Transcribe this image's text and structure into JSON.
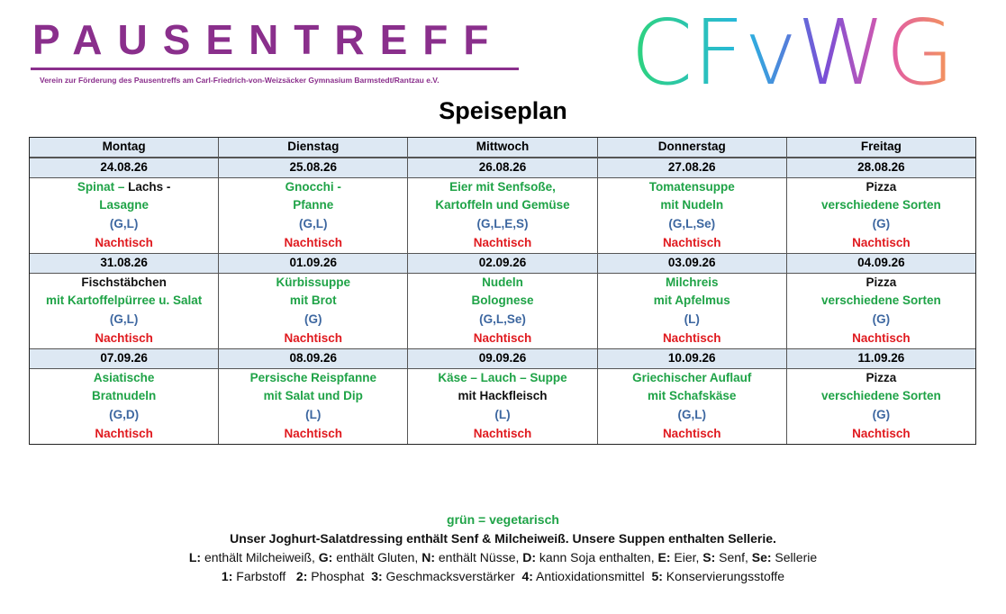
{
  "header": {
    "brand": "PAUSENTREFF",
    "subtitle": "Verein zur Förderung des Pausentreffs am Carl-Friedrich-von-Weizsäcker Gymnasium Barmstedt/Rantzau e.V.",
    "logo": "CFvWG"
  },
  "title": "Speiseplan",
  "table": {
    "days": [
      "Montag",
      "Dienstag",
      "Mittwoch",
      "Donnerstag",
      "Freitag"
    ],
    "weeks": [
      {
        "dates": [
          "24.08.26",
          "25.08.26",
          "26.08.26",
          "27.08.26",
          "28.08.26"
        ],
        "menus": [
          [
            [
              [
                "Spinat – ",
                "green"
              ],
              [
                "Lachs -",
                "black"
              ]
            ],
            [
              [
                "Lasagne",
                "green"
              ]
            ],
            [
              [
                "(G,L)",
                "blue"
              ]
            ],
            [
              [
                "Nachtisch",
                "red"
              ]
            ]
          ],
          [
            [
              [
                "Gnocchi -",
                "green"
              ]
            ],
            [
              [
                "Pfanne",
                "green"
              ]
            ],
            [
              [
                "(G,L)",
                "blue"
              ]
            ],
            [
              [
                "Nachtisch",
                "red"
              ]
            ]
          ],
          [
            [
              [
                "Eier mit Senfsoße,",
                "green"
              ]
            ],
            [
              [
                "Kartoffeln und Gemüse",
                "green"
              ]
            ],
            [
              [
                "(G,L,E,S)",
                "blue"
              ]
            ],
            [
              [
                "Nachtisch",
                "red"
              ]
            ]
          ],
          [
            [
              [
                "Tomatensuppe",
                "green"
              ]
            ],
            [
              [
                "mit Nudeln",
                "green"
              ]
            ],
            [
              [
                "(G,L,Se)",
                "blue"
              ]
            ],
            [
              [
                "Nachtisch",
                "red"
              ]
            ]
          ],
          [
            [
              [
                "Pizza",
                "black"
              ]
            ],
            [
              [
                "verschiedene Sorten",
                "green"
              ]
            ],
            [
              [
                "(G)",
                "blue"
              ]
            ],
            [
              [
                "Nachtisch",
                "red"
              ]
            ]
          ]
        ]
      },
      {
        "dates": [
          "31.08.26",
          "01.09.26",
          "02.09.26",
          "03.09.26",
          "04.09.26"
        ],
        "menus": [
          [
            [
              [
                "Fischstäbchen",
                "black"
              ]
            ],
            [
              [
                "mit Kartoffelpürree u. Salat",
                "green"
              ]
            ],
            [
              [
                "(G,L)",
                "blue"
              ]
            ],
            [
              [
                "Nachtisch",
                "red"
              ]
            ]
          ],
          [
            [
              [
                "Kürbissuppe",
                "green"
              ]
            ],
            [
              [
                "mit Brot",
                "green"
              ]
            ],
            [
              [
                "(G)",
                "blue"
              ]
            ],
            [
              [
                "Nachtisch",
                "red"
              ]
            ]
          ],
          [
            [
              [
                "Nudeln",
                "green"
              ]
            ],
            [
              [
                "Bolognese",
                "green"
              ]
            ],
            [
              [
                "(G,L,Se)",
                "blue"
              ]
            ],
            [
              [
                "Nachtisch",
                "red"
              ]
            ]
          ],
          [
            [
              [
                "Milchreis",
                "green"
              ]
            ],
            [
              [
                "mit Apfelmus",
                "green"
              ]
            ],
            [
              [
                "(L)",
                "blue"
              ]
            ],
            [
              [
                "Nachtisch",
                "red"
              ]
            ]
          ],
          [
            [
              [
                "Pizza",
                "black"
              ]
            ],
            [
              [
                "verschiedene Sorten",
                "green"
              ]
            ],
            [
              [
                "(G)",
                "blue"
              ]
            ],
            [
              [
                "Nachtisch",
                "red"
              ]
            ]
          ]
        ]
      },
      {
        "dates": [
          "07.09.26",
          "08.09.26",
          "09.09.26",
          "10.09.26",
          "11.09.26"
        ],
        "menus": [
          [
            [
              [
                "Asiatische",
                "green"
              ]
            ],
            [
              [
                "Bratnudeln",
                "green"
              ]
            ],
            [
              [
                "(G,D)",
                "blue"
              ]
            ],
            [
              [
                "Nachtisch",
                "red"
              ]
            ]
          ],
          [
            [
              [
                "Persische Reispfanne",
                "green"
              ]
            ],
            [
              [
                "mit Salat und Dip",
                "green"
              ]
            ],
            [
              [
                "(L)",
                "blue"
              ]
            ],
            [
              [
                "Nachtisch",
                "red"
              ]
            ]
          ],
          [
            [
              [
                "Käse – Lauch – Suppe",
                "green"
              ]
            ],
            [
              [
                "mit Hackfleisch",
                "black"
              ]
            ],
            [
              [
                "(L)",
                "blue"
              ]
            ],
            [
              [
                "Nachtisch",
                "red"
              ]
            ]
          ],
          [
            [
              [
                "Griechischer Auflauf",
                "green"
              ]
            ],
            [
              [
                "mit Schafskäse",
                "green"
              ]
            ],
            [
              [
                "(G,L)",
                "blue"
              ]
            ],
            [
              [
                "Nachtisch",
                "red"
              ]
            ]
          ],
          [
            [
              [
                "Pizza",
                "black"
              ]
            ],
            [
              [
                "verschiedene Sorten",
                "green"
              ]
            ],
            [
              [
                "(G)",
                "blue"
              ]
            ],
            [
              [
                "Nachtisch",
                "red"
              ]
            ]
          ]
        ]
      }
    ]
  },
  "legend": [
    [
      {
        "text": "grün = vegetarisch",
        "bold": true,
        "color": "green"
      }
    ],
    [
      {
        "text": "Unser Joghurt-Salatdressing enthält Senf & Milcheiweiß. Unsere Suppen enthalten Sellerie.",
        "bold": true,
        "color": "black"
      }
    ],
    [
      {
        "text": "L:",
        "bold": true,
        "color": "black"
      },
      {
        "text": " enthält Milcheiweiß, ",
        "bold": false,
        "color": "black"
      },
      {
        "text": "G:",
        "bold": true,
        "color": "black"
      },
      {
        "text": " enthält Gluten, ",
        "bold": false,
        "color": "black"
      },
      {
        "text": "N:",
        "bold": true,
        "color": "black"
      },
      {
        "text": " enthält Nüsse, ",
        "bold": false,
        "color": "black"
      },
      {
        "text": "D:",
        "bold": true,
        "color": "black"
      },
      {
        "text": " kann Soja enthalten, ",
        "bold": false,
        "color": "black"
      },
      {
        "text": "E:",
        "bold": true,
        "color": "black"
      },
      {
        "text": " Eier, ",
        "bold": false,
        "color": "black"
      },
      {
        "text": "S:",
        "bold": true,
        "color": "black"
      },
      {
        "text": " Senf, ",
        "bold": false,
        "color": "black"
      },
      {
        "text": "Se:",
        "bold": true,
        "color": "black"
      },
      {
        "text": " Sellerie",
        "bold": false,
        "color": "black"
      }
    ],
    [
      {
        "text": "1:",
        "bold": true,
        "color": "black"
      },
      {
        "text": " Farbstoff   ",
        "bold": false,
        "color": "black"
      },
      {
        "text": "2:",
        "bold": true,
        "color": "black"
      },
      {
        "text": " Phosphat  ",
        "bold": false,
        "color": "black"
      },
      {
        "text": "3:",
        "bold": true,
        "color": "black"
      },
      {
        "text": " Geschmacksverstärker  ",
        "bold": false,
        "color": "black"
      },
      {
        "text": "4:",
        "bold": true,
        "color": "black"
      },
      {
        "text": " Antioxidationsmittel  ",
        "bold": false,
        "color": "black"
      },
      {
        "text": "5:",
        "bold": true,
        "color": "black"
      },
      {
        "text": " Konservierungsstoffe",
        "bold": false,
        "color": "black"
      }
    ]
  ]
}
